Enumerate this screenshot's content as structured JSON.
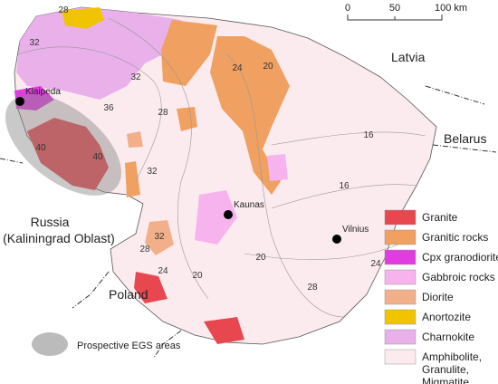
{
  "scale_bar": {
    "labels": [
      "0",
      "50",
      "100 km"
    ]
  },
  "countries": [
    "Latvia",
    "Belarus",
    "Russia",
    "(Kaliningrad Oblast)",
    "Poland"
  ],
  "cities": [
    "Klaipeda",
    "Kaunas",
    "Vilnius"
  ],
  "contour_labels": [
    28,
    32,
    32,
    36,
    40,
    40,
    28,
    24,
    20,
    16,
    16,
    32,
    32,
    28,
    24,
    20,
    20,
    24,
    28
  ],
  "legend": {
    "items": [
      {
        "label": "Granite",
        "color": "#e8474f"
      },
      {
        "label": "Granitic rocks",
        "color": "#f0a060"
      },
      {
        "label": "Cpx granodiorite",
        "color": "#e03ce0"
      },
      {
        "label": "Gabbroic rocks",
        "color": "#f6b3ee"
      },
      {
        "label": "Diorite",
        "color": "#f2b08a"
      },
      {
        "label": "Anortozite",
        "color": "#f0c400"
      },
      {
        "label": "Charnokite",
        "color": "#e9b0ea"
      },
      {
        "lines": [
          "Amphibolite,",
          "Granulite,",
          "Migmatite"
        ],
        "color": "#fcebee"
      }
    ]
  },
  "prospective": "Prospective EGS areas"
}
